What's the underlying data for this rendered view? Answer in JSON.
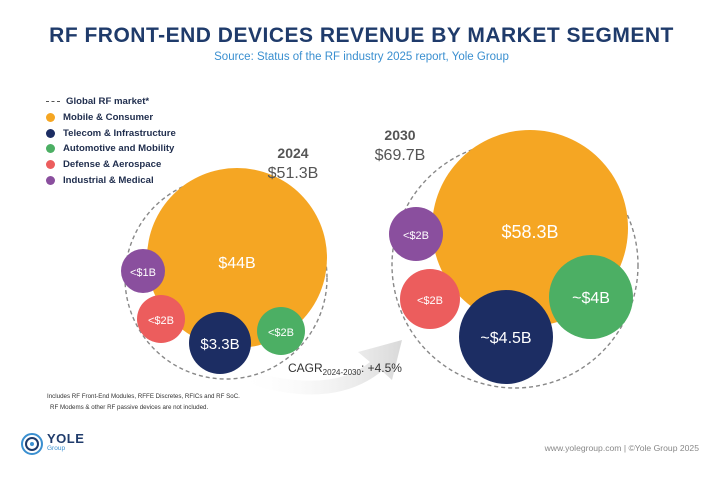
{
  "header": {
    "title": "RF FRONT-END DEVICES REVENUE BY MARKET SEGMENT",
    "subtitle": "Source: Status of the RF industry 2025 report, Yole Group"
  },
  "legend": {
    "items": [
      {
        "label": "Global RF market*",
        "style": "dashed",
        "color": "#555555"
      },
      {
        "label": "Mobile & Consumer",
        "style": "dot",
        "color": "#f5a623"
      },
      {
        "label": "Telecom & Infrastructure",
        "style": "dot",
        "color": "#1c2d63"
      },
      {
        "label": "Automotive and Mobility",
        "style": "dot",
        "color": "#4caf64"
      },
      {
        "label": "Defense & Aerospace",
        "style": "dot",
        "color": "#ec5d5d"
      },
      {
        "label": "Industrial & Medical",
        "style": "dot",
        "color": "#8a4f9e"
      }
    ]
  },
  "chart_data": {
    "type": "bubble",
    "groups": [
      {
        "year": "2024",
        "total_label": "$51.3B",
        "segments": [
          {
            "name": "Mobile & Consumer",
            "label": "$44B",
            "color": "#f5a623"
          },
          {
            "name": "Telecom & Infrastructure",
            "label": "$3.3B",
            "color": "#1c2d63"
          },
          {
            "name": "Automotive and Mobility",
            "label": "<$2B",
            "color": "#4caf64"
          },
          {
            "name": "Defense & Aerospace",
            "label": "<$2B",
            "color": "#ec5d5d"
          },
          {
            "name": "Industrial & Medical",
            "label": "<$1B",
            "color": "#8a4f9e"
          }
        ]
      },
      {
        "year": "2030",
        "total_label": "$69.7B",
        "segments": [
          {
            "name": "Mobile & Consumer",
            "label": "$58.3B",
            "color": "#f5a623"
          },
          {
            "name": "Telecom & Infrastructure",
            "label": "~$4.5B",
            "color": "#1c2d63"
          },
          {
            "name": "Automotive and Mobility",
            "label": "~$4B",
            "color": "#4caf64"
          },
          {
            "name": "Defense & Aerospace",
            "label": "<$2B",
            "color": "#ec5d5d"
          },
          {
            "name": "Industrial & Medical",
            "label": "<$2B",
            "color": "#8a4f9e"
          }
        ]
      }
    ],
    "cagr": {
      "label": "CAGR",
      "sub": "2024-2030",
      "value": ": +4.5%"
    }
  },
  "footnote": {
    "line1": "Includes RF Front-End Modules, RFFE Discretes, RFICs and RF SoC.",
    "line2": "RF Modems & other RF passive devices are not included."
  },
  "logo": {
    "name": "YOLE",
    "sub": "Group"
  },
  "credit": "www.yolegroup.com | ©Yole Group 2025"
}
